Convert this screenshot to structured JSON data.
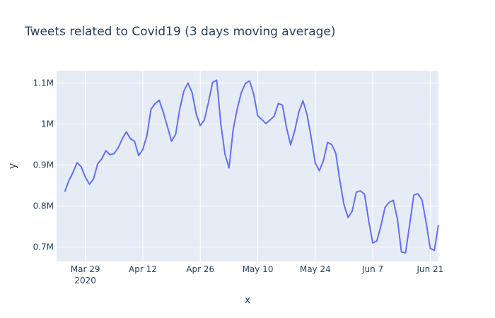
{
  "chart_data": {
    "type": "line",
    "title": "Tweets related to Covid19 (3 days moving average)",
    "xlabel": "x",
    "ylabel": "y",
    "grid": true,
    "legend": "none",
    "xlim": [
      "2020-03-22",
      "2020-06-23"
    ],
    "ylim": [
      665000,
      1130000
    ],
    "x_ticks": [
      {
        "date": "2020-03-29",
        "label": "Mar 29",
        "sublabel": "2020"
      },
      {
        "date": "2020-04-12",
        "label": "Apr 12",
        "sublabel": ""
      },
      {
        "date": "2020-04-26",
        "label": "Apr 26",
        "sublabel": ""
      },
      {
        "date": "2020-05-10",
        "label": "May 10",
        "sublabel": ""
      },
      {
        "date": "2020-05-24",
        "label": "May 24",
        "sublabel": ""
      },
      {
        "date": "2020-06-07",
        "label": "Jun 7",
        "sublabel": ""
      },
      {
        "date": "2020-06-21",
        "label": "Jun 21",
        "sublabel": ""
      }
    ],
    "y_ticks": [
      {
        "value": 700000,
        "label": "0.7M"
      },
      {
        "value": 800000,
        "label": "0.8M"
      },
      {
        "value": 900000,
        "label": "0.9M"
      },
      {
        "value": 1000000,
        "label": "1M"
      },
      {
        "value": 1100000,
        "label": "1.1M"
      }
    ],
    "series": [
      {
        "color": "#636efa",
        "x": [
          "2020-03-24",
          "2020-03-25",
          "2020-03-26",
          "2020-03-27",
          "2020-03-28",
          "2020-03-29",
          "2020-03-30",
          "2020-03-31",
          "2020-04-01",
          "2020-04-02",
          "2020-04-03",
          "2020-04-04",
          "2020-04-05",
          "2020-04-06",
          "2020-04-07",
          "2020-04-08",
          "2020-04-09",
          "2020-04-10",
          "2020-04-11",
          "2020-04-12",
          "2020-04-13",
          "2020-04-14",
          "2020-04-15",
          "2020-04-16",
          "2020-04-17",
          "2020-04-18",
          "2020-04-19",
          "2020-04-20",
          "2020-04-21",
          "2020-04-22",
          "2020-04-23",
          "2020-04-24",
          "2020-04-25",
          "2020-04-26",
          "2020-04-27",
          "2020-04-28",
          "2020-04-29",
          "2020-04-30",
          "2020-05-01",
          "2020-05-02",
          "2020-05-03",
          "2020-05-04",
          "2020-05-05",
          "2020-05-06",
          "2020-05-07",
          "2020-05-08",
          "2020-05-09",
          "2020-05-10",
          "2020-05-11",
          "2020-05-12",
          "2020-05-13",
          "2020-05-14",
          "2020-05-15",
          "2020-05-16",
          "2020-05-17",
          "2020-05-18",
          "2020-05-19",
          "2020-05-20",
          "2020-05-21",
          "2020-05-22",
          "2020-05-23",
          "2020-05-24",
          "2020-05-25",
          "2020-05-26",
          "2020-05-27",
          "2020-05-28",
          "2020-05-29",
          "2020-05-30",
          "2020-05-31",
          "2020-06-01",
          "2020-06-02",
          "2020-06-03",
          "2020-06-04",
          "2020-06-05",
          "2020-06-06",
          "2020-06-07",
          "2020-06-08",
          "2020-06-09",
          "2020-06-10",
          "2020-06-11",
          "2020-06-12",
          "2020-06-13",
          "2020-06-14",
          "2020-06-15",
          "2020-06-16",
          "2020-06-17",
          "2020-06-18",
          "2020-06-19",
          "2020-06-20",
          "2020-06-21",
          "2020-06-22",
          "2020-06-23"
        ],
        "y": [
          835000,
          862000,
          882000,
          906000,
          896000,
          871000,
          853000,
          866000,
          903000,
          915000,
          935000,
          925000,
          928000,
          942000,
          964000,
          981000,
          964000,
          958000,
          923000,
          938000,
          971000,
          1036000,
          1050000,
          1058000,
          1028000,
          993000,
          958000,
          975000,
          1037000,
          1080000,
          1100000,
          1077000,
          1025000,
          996000,
          1010000,
          1053000,
          1101000,
          1107000,
          1000000,
          927000,
          893000,
          986000,
          1037000,
          1077000,
          1099000,
          1105000,
          1073000,
          1020000,
          1011000,
          1001000,
          1010000,
          1019000,
          1050000,
          1046000,
          991000,
          949000,
          984000,
          1029000,
          1057000,
          1023000,
          967000,
          905000,
          886000,
          911000,
          955000,
          950000,
          929000,
          862000,
          803000,
          772000,
          788000,
          834000,
          837000,
          829000,
          765000,
          710000,
          715000,
          752000,
          797000,
          809000,
          814000,
          770000,
          688000,
          686000,
          756000,
          827000,
          830000,
          815000,
          760000,
          697000,
          692000,
          754000
        ]
      }
    ]
  }
}
